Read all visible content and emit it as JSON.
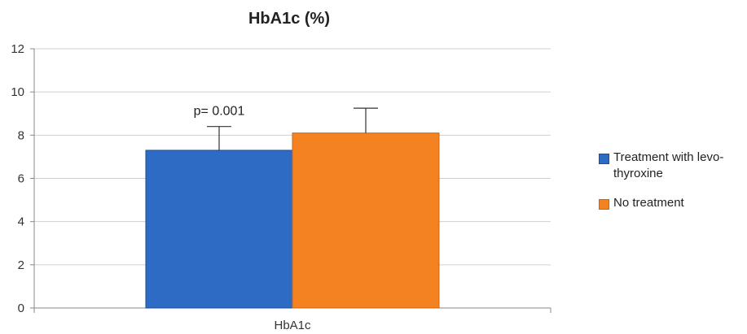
{
  "chart_data": {
    "type": "bar",
    "title": "HbA1c (%)",
    "xlabel": "",
    "ylabel": "",
    "categories": [
      "HbA1c"
    ],
    "ylim": [
      0,
      12
    ],
    "yticks": [
      0,
      2,
      4,
      6,
      8,
      10,
      12
    ],
    "grid": true,
    "legend_position": "right",
    "series": [
      {
        "name": "Treatment with levo-thyroxine",
        "values": [
          7.3
        ],
        "error": [
          1.1
        ],
        "color": "#2e6bc4"
      },
      {
        "name": "No treatment",
        "values": [
          8.1
        ],
        "error": [
          1.15
        ],
        "color": "#f58220"
      }
    ],
    "annotations": [
      {
        "text": "p= 0.001"
      }
    ]
  }
}
